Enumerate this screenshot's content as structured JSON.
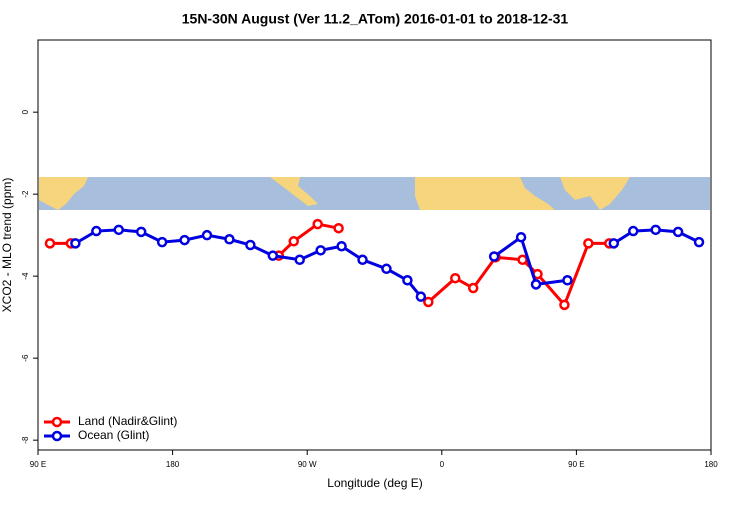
{
  "chart_data": {
    "type": "line",
    "title": "15N-30N August (Ver 11.2_ATom)   2016-01-01 to 2018-12-31",
    "xlabel": "Longitude (deg E)",
    "ylabel": "XCO2 - MLO trend (ppm)",
    "xlim": [
      90,
      540
    ],
    "ylim": [
      -8.24,
      1.76
    ],
    "xticks": [
      {
        "value": 90,
        "label": "90 E"
      },
      180,
      {
        "value": 270,
        "label": "90 W"
      },
      {
        "value": 360,
        "label": "0"
      },
      {
        "value": 450,
        "label": "90 E"
      },
      {
        "value": 540,
        "label": "180"
      }
    ],
    "yticks": [
      0,
      -2,
      -4,
      -6,
      -8
    ],
    "legend": "bottom-left",
    "series": [
      {
        "name": "Land (Nadir&Glint)",
        "color": "#ff0000",
        "x": [
          98,
          112,
          180,
          251,
          261,
          277,
          291,
          320,
          351,
          369,
          381,
          396,
          414,
          424,
          442,
          458,
          472
        ],
        "values": [
          -3.2,
          -3.2,
          null,
          -3.5,
          -3.15,
          -2.73,
          -2.83,
          null,
          -4.63,
          -4.05,
          -4.29,
          -3.54,
          -3.6,
          -3.95,
          -4.7,
          -3.2,
          -3.2
        ]
      },
      {
        "name": "Ocean (Glint)",
        "color": "#0000e0",
        "x": [
          115,
          129,
          144,
          159,
          173,
          188,
          203,
          218,
          232,
          247,
          265,
          279,
          293,
          307,
          323,
          337,
          346,
          370,
          395,
          413,
          423,
          444,
          460,
          475,
          488,
          503,
          518,
          532
        ],
        "values": [
          -3.2,
          -2.9,
          -2.87,
          -2.92,
          -3.17,
          -3.12,
          -3.0,
          -3.1,
          -3.24,
          -3.5,
          -3.6,
          -3.37,
          -3.27,
          -3.6,
          -3.82,
          -4.1,
          -4.5,
          null,
          -3.52,
          -3.05,
          -4.2,
          -4.1,
          null,
          -3.2,
          -2.9,
          -2.87,
          -2.92,
          -3.17
        ]
      }
    ]
  }
}
